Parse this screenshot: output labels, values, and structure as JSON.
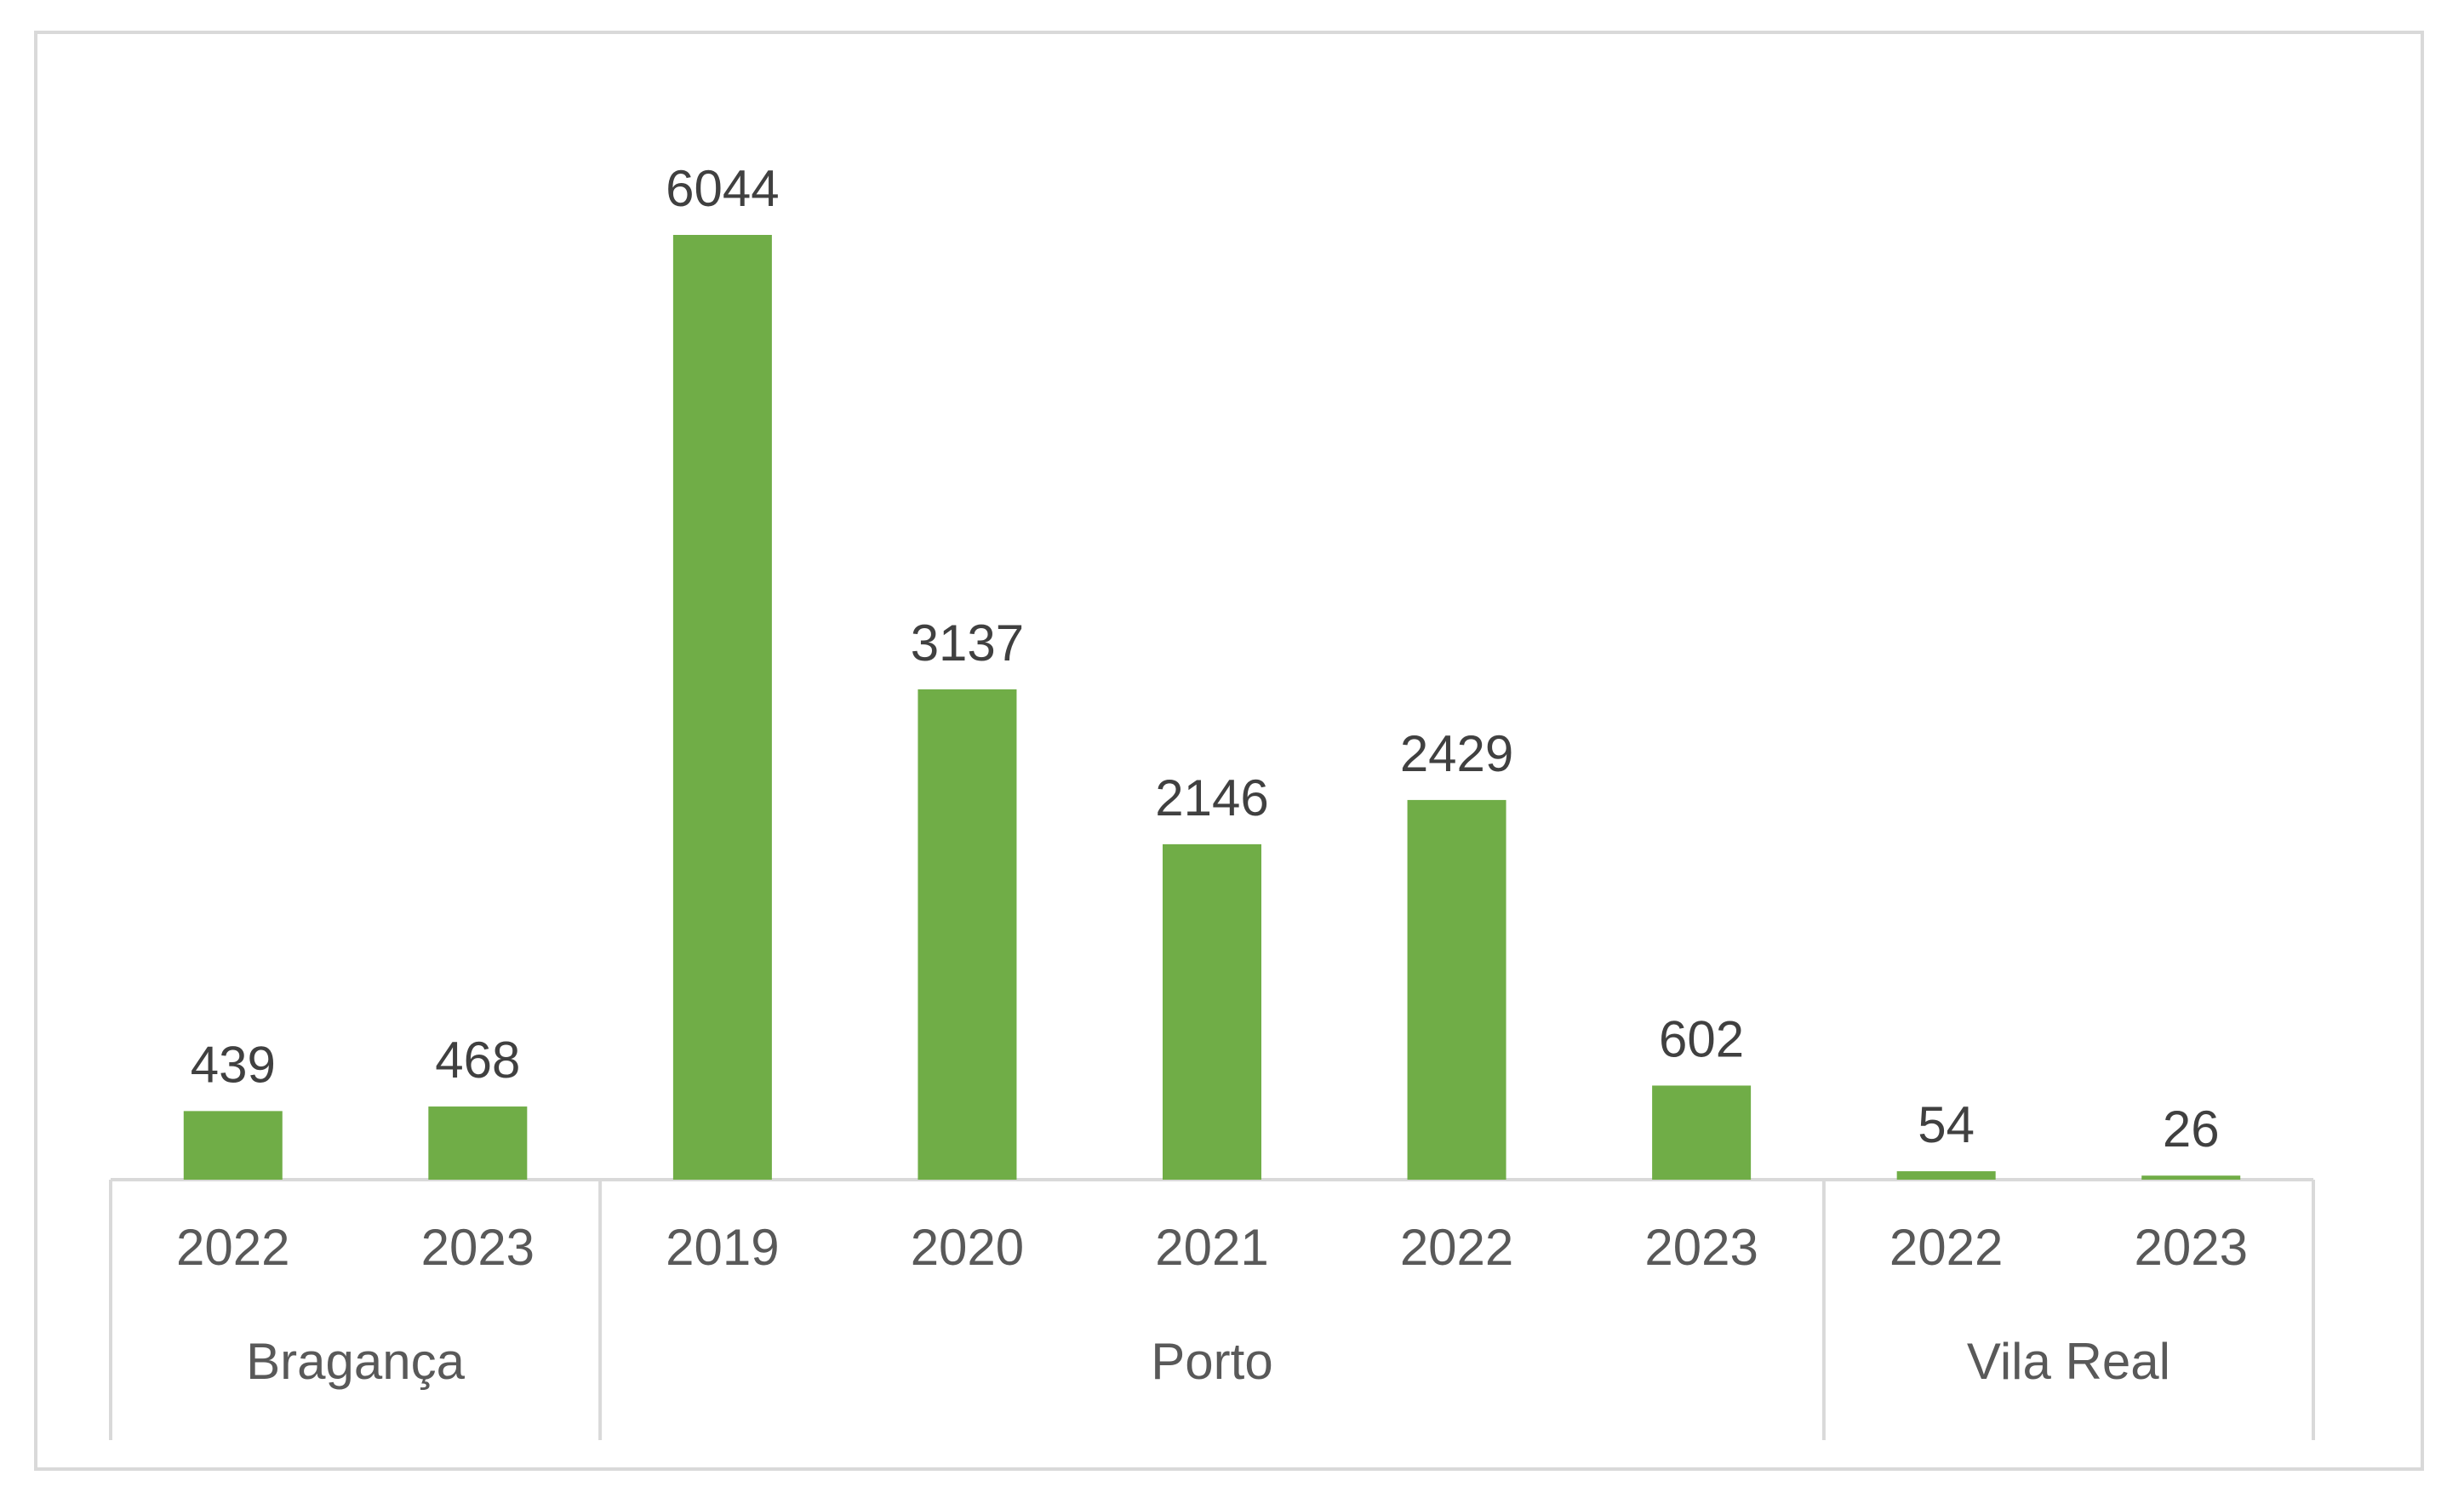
{
  "chart_data": {
    "type": "bar",
    "title": "",
    "xlabel": "",
    "ylabel": "",
    "ylim": [
      0,
      7000
    ],
    "grid": false,
    "legend": "none",
    "bar_color": "#70ad47",
    "groups": [
      {
        "name": "Bragança",
        "categories": [
          "2022",
          "2023"
        ],
        "values": [
          439,
          468
        ]
      },
      {
        "name": "Porto",
        "categories": [
          "2019",
          "2020",
          "2021",
          "2022",
          "2023"
        ],
        "values": [
          6044,
          3137,
          2146,
          2429,
          602
        ]
      },
      {
        "name": "Vila Real",
        "categories": [
          "2022",
          "2023"
        ],
        "values": [
          54,
          26
        ]
      }
    ]
  }
}
